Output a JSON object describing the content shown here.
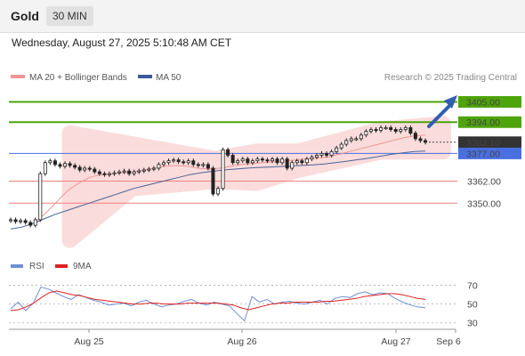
{
  "header": {
    "symbol": "Gold",
    "timeframe": "30 MIN"
  },
  "timestamp": "Wednesday, August 27, 2025 5:10:48 AM CET",
  "source": "Research © 2025 Trading Central",
  "colors": {
    "resistance": "#4ea40a",
    "support": "#f08080",
    "support_label": "#e02020",
    "pivot": "#4a6fe0",
    "price_tag": "#333333",
    "bollinger": "#fbd6d6",
    "ma50": "#4a6396",
    "ma20": "#f29494",
    "rsi": "#6f8fd6",
    "rsi_ma": "#e02020",
    "arrow": "#2f5fb0",
    "candle": "#222222"
  },
  "chart_data": [
    {
      "type": "candlestick",
      "legend": [
        {
          "name": "MA 20 + Bollinger Bands",
          "color": "#f29494"
        },
        {
          "name": "MA 50",
          "color": "#3a5a98"
        }
      ],
      "ylim": [
        3325,
        3412
      ],
      "levels": [
        {
          "value": 3405,
          "label": "3405.00",
          "kind": "resistance"
        },
        {
          "value": 3394,
          "label": "3394.00",
          "kind": "resistance"
        },
        {
          "value": 3383.1,
          "label": "3383.10",
          "kind": "price"
        },
        {
          "value": 3377,
          "label": "3377.00",
          "kind": "pivot"
        },
        {
          "value": 3362,
          "label": "3362.00",
          "kind": "support"
        },
        {
          "value": 3350,
          "label": "3350.00",
          "kind": "support"
        }
      ],
      "close_series": [
        3341,
        3340,
        3340.5,
        3339.5,
        3338,
        3341,
        3366,
        3372,
        3373,
        3371,
        3370,
        3371.5,
        3370.5,
        3369.5,
        3368,
        3369,
        3368.5,
        3367,
        3366,
        3365.5,
        3366,
        3366.5,
        3367,
        3367.5,
        3366,
        3367,
        3367.5,
        3368,
        3368.5,
        3369,
        3371,
        3372,
        3373,
        3373.5,
        3372.5,
        3372,
        3373,
        3371,
        3370.5,
        3371,
        3369,
        3355,
        3358,
        3379,
        3376,
        3372,
        3373,
        3374,
        3372,
        3373,
        3374,
        3373.5,
        3373,
        3374,
        3372,
        3374,
        3369,
        3372,
        3373,
        3372,
        3374,
        3375,
        3376,
        3377,
        3376,
        3378,
        3380,
        3382,
        3384,
        3385,
        3385,
        3387,
        3389,
        3390,
        3389.5,
        3391,
        3391,
        3390,
        3389,
        3390,
        3391,
        3388,
        3385,
        3384,
        3383.1
      ],
      "ma50": [
        3336,
        3337,
        3339,
        3341.5,
        3344,
        3346,
        3348,
        3350,
        3352,
        3354,
        3356,
        3358,
        3359.5,
        3361,
        3362.5,
        3364,
        3365.5,
        3366.5,
        3367.3,
        3368,
        3368.5,
        3369,
        3369.3,
        3369.6,
        3369.9,
        3370.2,
        3370.5,
        3370.8,
        3371.3,
        3372,
        3372.8,
        3373.6,
        3374.5,
        3375.5,
        3376.5,
        3377.3,
        3378,
        3378.3
      ],
      "ma20": [
        3340,
        3345,
        3351,
        3357,
        3361,
        3364,
        3365.5,
        3366,
        3366.5,
        3367,
        3368,
        3369,
        3370,
        3370.5,
        3370,
        3369,
        3368.5,
        3369,
        3370,
        3371,
        3371.5,
        3372,
        3372.5,
        3373,
        3373.5,
        3374,
        3374.5,
        3375,
        3376.5,
        3378,
        3379.5,
        3381,
        3382.5,
        3384,
        3385.5,
        3386.5,
        3387
      ],
      "bollinger": [
        {
          "x": 0.1,
          "upper": 3388,
          "lower": 3330
        },
        {
          "x": 0.25,
          "upper": 3382,
          "lower": 3358
        },
        {
          "x": 0.45,
          "upper": 3374,
          "lower": 3362
        },
        {
          "x": 0.55,
          "upper": 3378,
          "lower": 3361
        },
        {
          "x": 0.65,
          "upper": 3378,
          "lower": 3368
        },
        {
          "x": 0.85,
          "upper": 3390,
          "lower": 3378
        },
        {
          "x": 1.0,
          "upper": 3393,
          "lower": 3378
        }
      ],
      "xticks": [
        "Aug 25",
        "Aug 26",
        "Aug 27",
        "Sep 6"
      ]
    },
    {
      "type": "line",
      "legend": [
        {
          "name": "RSI",
          "color": "#6f8fd6"
        },
        {
          "name": "9MA",
          "color": "#e02020"
        }
      ],
      "ylim": [
        25,
        80
      ],
      "yticks": [
        30,
        50,
        70
      ],
      "rsi": [
        45,
        52,
        43,
        51,
        68,
        66,
        62,
        58,
        55,
        60,
        57,
        54,
        52,
        49,
        50,
        51,
        48,
        52,
        54,
        50,
        47,
        49,
        50,
        53,
        55,
        51,
        49,
        52,
        50,
        48,
        40,
        32,
        58,
        52,
        55,
        50,
        52,
        53,
        51,
        50,
        52,
        54,
        50,
        56,
        58,
        57,
        61,
        63,
        60,
        62,
        61,
        56,
        52,
        49,
        47,
        46
      ],
      "ma9": [
        43,
        44,
        47,
        51,
        57,
        62,
        64,
        62,
        60,
        59,
        57,
        55,
        54,
        53,
        52,
        51,
        50,
        50,
        51,
        51,
        50,
        50,
        50,
        51,
        51,
        51,
        51,
        51,
        50,
        49,
        46,
        44,
        46,
        48,
        50,
        51,
        51,
        52,
        52,
        52,
        52,
        53,
        53,
        54,
        55,
        56,
        58,
        59,
        60,
        61,
        61,
        60,
        58,
        56,
        55
      ]
    }
  ]
}
